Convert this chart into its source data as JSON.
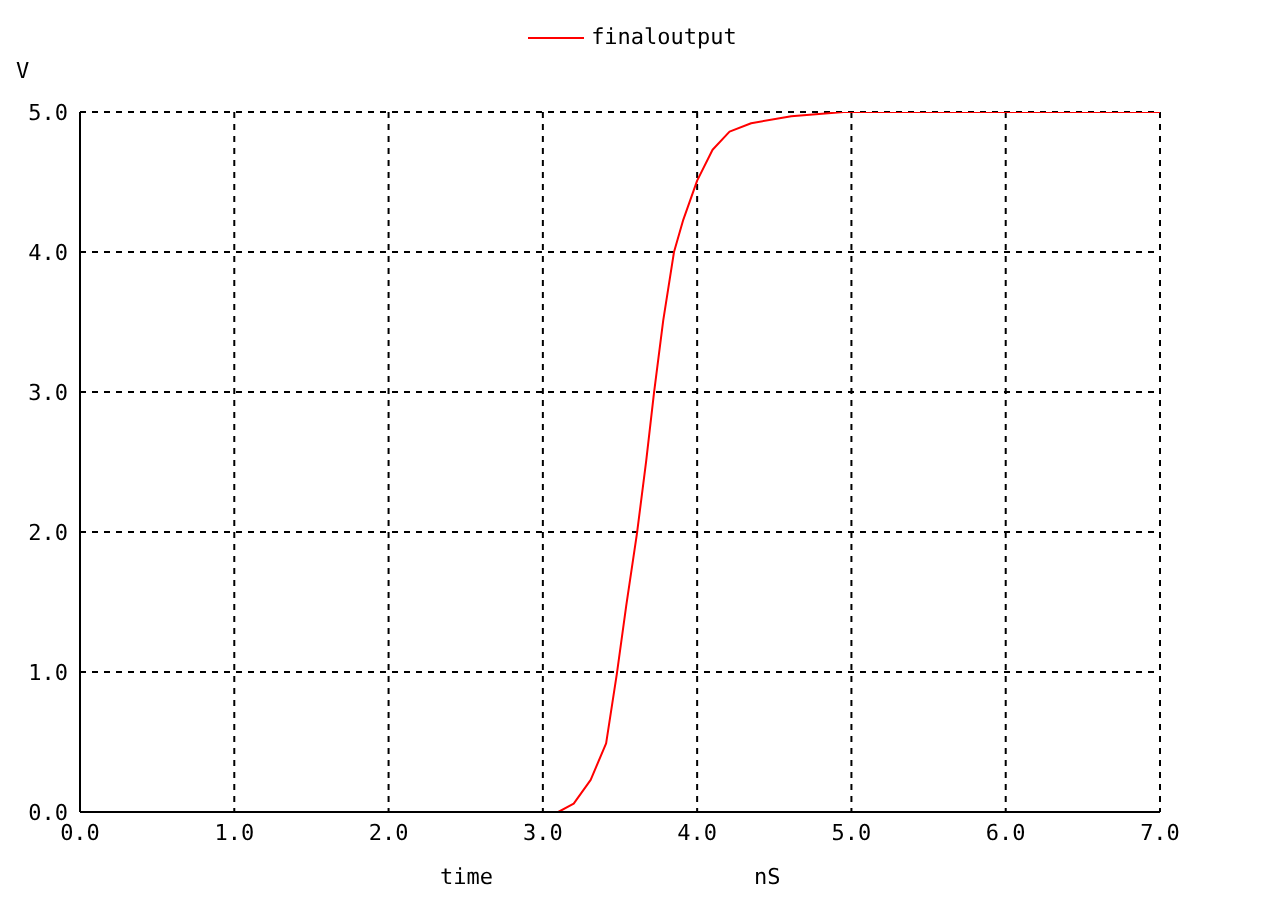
{
  "chart_data": {
    "type": "line",
    "xlabel": "time",
    "ylabel": "V",
    "annotations": [
      "nS"
    ],
    "x": [
      0,
      3.1,
      3.2,
      3.31,
      3.41,
      3.48,
      3.54,
      3.61,
      3.67,
      3.72,
      3.78,
      3.85,
      3.91,
      4.0,
      4.1,
      4.21,
      4.35,
      4.61,
      4.95,
      7
    ],
    "series": [
      {
        "name": "finaloutput",
        "color": "#ff0000",
        "values": [
          0,
          0,
          0.06,
          0.23,
          0.49,
          0.99,
          1.47,
          1.99,
          2.51,
          2.99,
          3.51,
          4.0,
          4.23,
          4.51,
          4.73,
          4.86,
          4.92,
          4.97,
          5.0,
          5.0
        ]
      }
    ],
    "xlim": [
      0,
      7
    ],
    "ylim": [
      0,
      5
    ],
    "xticks": [
      {
        "value": 0,
        "label": "0.0"
      },
      {
        "value": 1,
        "label": "1.0"
      },
      {
        "value": 2,
        "label": "2.0"
      },
      {
        "value": 3,
        "label": "3.0"
      },
      {
        "value": 4,
        "label": "4.0"
      },
      {
        "value": 5,
        "label": "5.0"
      },
      {
        "value": 6,
        "label": "6.0"
      },
      {
        "value": 7,
        "label": "7.0"
      }
    ],
    "yticks": [
      {
        "value": 0,
        "label": "0.0"
      },
      {
        "value": 1,
        "label": "1.0"
      },
      {
        "value": 2,
        "label": "2.0"
      },
      {
        "value": 3,
        "label": "3.0"
      },
      {
        "value": 4,
        "label": "4.0"
      },
      {
        "value": 5,
        "label": "5.0"
      }
    ],
    "grid": true,
    "legend": "top",
    "marker": "none",
    "line_style": "solid"
  }
}
